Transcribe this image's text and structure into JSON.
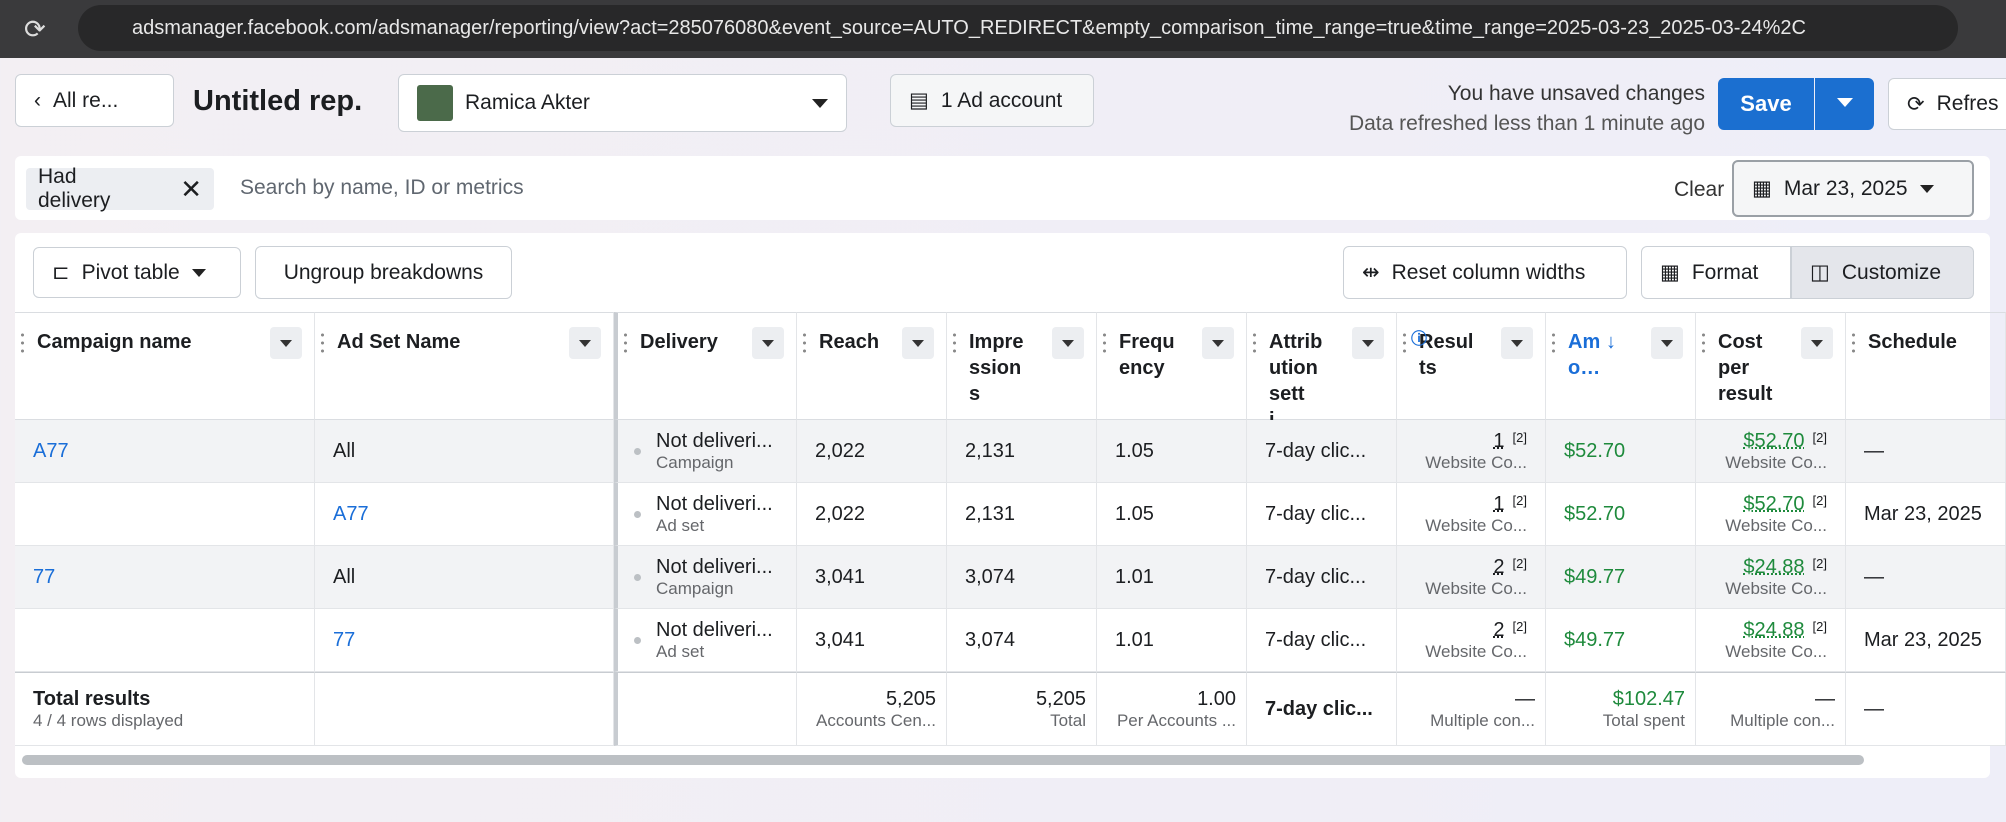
{
  "browser": {
    "url": "adsmanager.facebook.com/adsmanager/reporting/view?act=285076080&event_source=AUTO_REDIRECT&empty_comparison_time_range=true&time_range=2025-03-23_2025-03-24%2C"
  },
  "header": {
    "back": "All re...",
    "title": "Untitled rep.",
    "account_name": "Ramica Akter",
    "ad_account": "1 Ad account",
    "unsaved": "You have unsaved changes",
    "refreshed": "Data refreshed less than 1 minute ago",
    "save": "Save",
    "refresh": "Refres"
  },
  "filter": {
    "chip": "Had delivery",
    "placeholder": "Search by name, ID or metrics",
    "clear": "Clear",
    "date": "Mar 23, 2025"
  },
  "toolbar": {
    "pivot": "Pivot table",
    "ungroup": "Ungroup breakdowns",
    "reset": "Reset column widths",
    "format": "Format",
    "customize": "Customize"
  },
  "table": {
    "columns": [
      "Campaign name",
      "Ad Set Name",
      "Delivery",
      "Reach",
      "Impressions",
      "Frequency",
      "Attribution setti…",
      "Results",
      "Amo…",
      "Cost per result",
      "Schedule"
    ],
    "rows": [
      {
        "campaign": "A77",
        "adset": "All",
        "delivery": "Not deliveri...",
        "level": "Campaign",
        "reach": "2,022",
        "impressions": "2,131",
        "frequency": "1.05",
        "attribution": "7-day clic...",
        "results": "1",
        "results_note": "[2]",
        "results_type": "Website Co...",
        "amount": "$52.70",
        "cost": "$52.70",
        "cost_note": "[2]",
        "cost_type": "Website Co...",
        "schedule": "—"
      },
      {
        "campaign": null,
        "adset": "A77",
        "delivery": "Not deliveri...",
        "level": "Ad set",
        "reach": "2,022",
        "impressions": "2,131",
        "frequency": "1.05",
        "attribution": "7-day clic...",
        "results": "1",
        "results_note": "[2]",
        "results_type": "Website Co...",
        "amount": "$52.70",
        "cost": "$52.70",
        "cost_note": "[2]",
        "cost_type": "Website Co...",
        "schedule": "Mar 23, 2025"
      },
      {
        "campaign": "77",
        "adset": "All",
        "delivery": "Not deliveri...",
        "level": "Campaign",
        "reach": "3,041",
        "impressions": "3,074",
        "frequency": "1.01",
        "attribution": "7-day clic...",
        "results": "2",
        "results_note": "[2]",
        "results_type": "Website Co...",
        "amount": "$49.77",
        "cost": "$24.88",
        "cost_note": "[2]",
        "cost_type": "Website Co...",
        "schedule": "—"
      },
      {
        "campaign": null,
        "adset": "77",
        "delivery": "Not deliveri...",
        "level": "Ad set",
        "reach": "3,041",
        "impressions": "3,074",
        "frequency": "1.01",
        "attribution": "7-day clic...",
        "results": "2",
        "results_note": "[2]",
        "results_type": "Website Co...",
        "amount": "$49.77",
        "cost": "$24.88",
        "cost_note": "[2]",
        "cost_type": "Website Co...",
        "schedule": "Mar 23, 2025"
      }
    ],
    "total": {
      "label": "Total results",
      "rows_displayed": "4 / 4 rows displayed",
      "reach": "5,205",
      "reach_note": "Accounts Cen...",
      "impressions": "5,205",
      "impressions_note": "Total",
      "frequency": "1.00",
      "frequency_note": "Per Accounts ...",
      "attribution": "7-day clic...",
      "results": "—",
      "results_note": "Multiple con...",
      "amount": "$102.47",
      "amount_note": "Total spent",
      "cost": "—",
      "cost_note": "Multiple con...",
      "schedule": "—"
    }
  }
}
